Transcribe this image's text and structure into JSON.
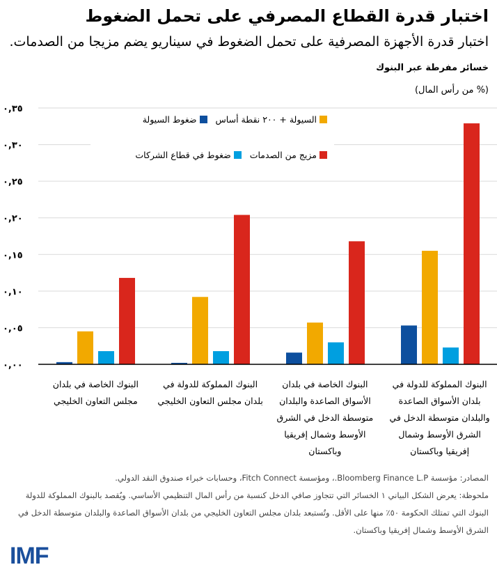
{
  "header": {
    "title": "اختبار قدرة القطاع المصرفي على تحمل الضغوط",
    "subtitle": "اختبار قدرة الأجهزة المصرفية على تحمل الضغوط في سيناريو يضم مزيجا من الصدمات."
  },
  "chart_data": {
    "type": "bar",
    "ylabel": "خسائر مفرطة عبر البنوك",
    "yunit": "(% من رأس المال)",
    "ylim": [
      0,
      0.35
    ],
    "yticks": [
      0,
      0.05,
      0.1,
      0.15,
      0.2,
      0.25,
      0.3,
      0.35
    ],
    "ytick_labels": [
      "٠,٠٠",
      "٠,٠٥",
      "٠,١٠",
      "٠,١٥",
      "٠,٢٠",
      "٠,٢٥",
      "٠,٣٠",
      "٠,٣٥"
    ],
    "grid": true,
    "legend_position": "top-center",
    "categories": [
      "البنوك الخاصة في بلدان مجلس التعاون الخليجي",
      "البنوك المملوكة للدولة في بلدان مجلس التعاون الخليجي",
      "البنوك الخاصة في بلدان الأسواق الصاعدة والبلدان متوسطة الدخل في الشرق الأوسط وشمال إفريقيا وباكستان",
      "البنوك المملوكة للدولة في بلدان الأسواق الصاعدة والبلدان متوسطة الدخل في الشرق الأوسط وشمال إفريقيا وباكستان"
    ],
    "series": [
      {
        "name": "ضغوط السيولة",
        "color": "#0d4f9e",
        "values": [
          0.003,
          0.002,
          0.016,
          0.053
        ]
      },
      {
        "name": "السيولة + ٢٠٠ نقطة أساس",
        "color": "#f2a900",
        "values": [
          0.045,
          0.092,
          0.057,
          0.155
        ]
      },
      {
        "name": "ضغوط في قطاع الشركات",
        "color": "#009fe0",
        "values": [
          0.018,
          0.018,
          0.03,
          0.023
        ]
      },
      {
        "name": "مزيج من الصدمات",
        "color": "#d9261c",
        "values": [
          0.118,
          0.204,
          0.168,
          0.329
        ]
      }
    ]
  },
  "notes": {
    "source": "المصادر: مؤسسة Bloomberg Finance L.P.، ومؤسسة Fitch Connect، وحسابات خبراء صندوق النقد الدولي.",
    "note": "ملحوظة: يعرض الشكل البياني ١ الخسائر التي تتجاوز صافي الدخل كنسبة من رأس المال التنظيمي الأساسي. ويُقصد بالبنوك المملوكة للدولة البنوك التي تمتلك الحكومة ٥٠٪ منها على الأقل. وتُستبعد بلدان مجلس التعاون الخليجي من بلدان الأسواق الصاعدة والبلدان متوسطة الدخل في الشرق الأوسط وشمال إفريقيا وباكستان."
  },
  "logo": "IMF"
}
